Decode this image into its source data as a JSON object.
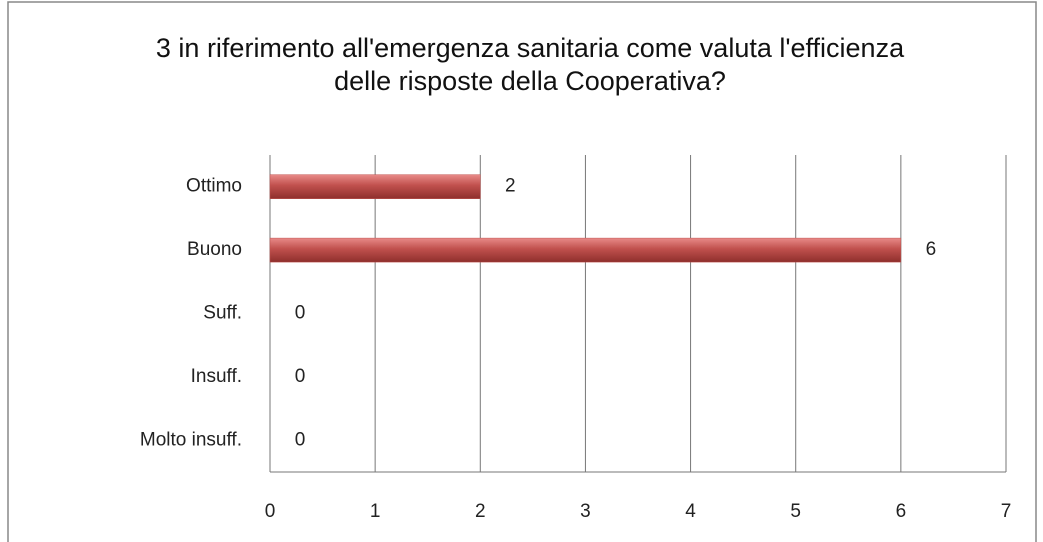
{
  "chart_data": {
    "type": "hbar",
    "title": "3 in riferimento all'emergenza sanitaria come valuta l'efficienza delle risposte della Cooperativa?",
    "categories": [
      "Ottimo",
      "Buono",
      "Suff.",
      "Insuff.",
      "Molto insuff."
    ],
    "values": [
      2,
      6,
      0,
      0,
      0
    ],
    "color": "#c0504d",
    "xlim": [
      0,
      7
    ],
    "xticks": [
      0,
      1,
      2,
      3,
      4,
      5,
      6,
      7
    ],
    "grid": true
  }
}
